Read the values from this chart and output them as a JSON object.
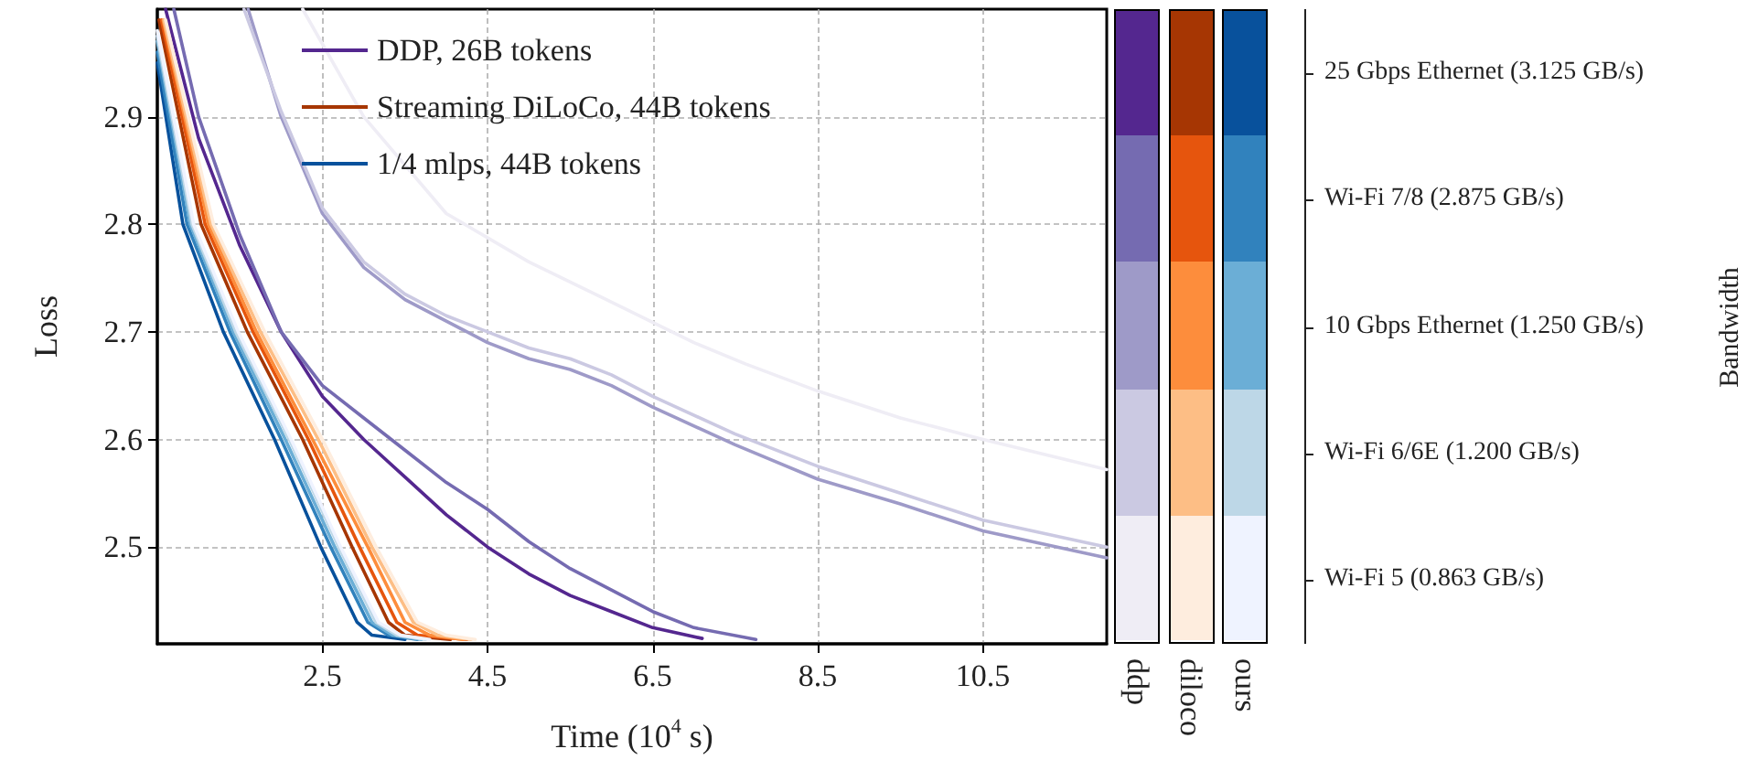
{
  "chart_data": [
    {
      "type": "line",
      "xlabel": "Time (10$^{4}$ s)",
      "ylabel": "Loss",
      "xlim": [
        0.5,
        12
      ],
      "ylim": [
        2.41,
        3.0
      ],
      "xticks": [
        2.5,
        4.5,
        6.5,
        8.5,
        10.5
      ],
      "yticks": [
        2.5,
        2.6,
        2.7,
        2.8,
        2.9
      ],
      "grid": true,
      "legend": "top left",
      "marker": "none",
      "series": [
        {
          "name": "DDP, 26B tokens",
          "color": "#54278f",
          "x": [
            0.6,
            1.0,
            1.5,
            2.0,
            2.5,
            3.0,
            3.5,
            4.0,
            4.5,
            5.0,
            5.5,
            6.0,
            6.5,
            7.1
          ],
          "values": [
            3.0,
            2.88,
            2.78,
            2.7,
            2.64,
            2.6,
            2.565,
            2.53,
            2.5,
            2.475,
            2.455,
            2.44,
            2.425,
            2.415
          ]
        },
        {
          "color": "#756bb1",
          "x": [
            0.7,
            1.0,
            1.5,
            2.0,
            2.5,
            3.0,
            3.5,
            4.0,
            4.5,
            5.0,
            5.5,
            6.0,
            6.5,
            7.0,
            7.75
          ],
          "values": [
            3.0,
            2.9,
            2.79,
            2.7,
            2.65,
            2.62,
            2.59,
            2.56,
            2.535,
            2.505,
            2.48,
            2.46,
            2.44,
            2.425,
            2.414
          ]
        },
        {
          "color": "#9e9ac8",
          "x": [
            1.6,
            2.0,
            2.5,
            3.0,
            3.5,
            4.0,
            4.5,
            5.0,
            5.5,
            6.0,
            6.5,
            7.5,
            8.5,
            9.5,
            10.5,
            12.0
          ],
          "values": [
            3.0,
            2.9,
            2.81,
            2.76,
            2.73,
            2.71,
            2.69,
            2.675,
            2.665,
            2.65,
            2.63,
            2.595,
            2.563,
            2.54,
            2.515,
            2.49
          ]
        },
        {
          "color": "#cbc9e2",
          "x": [
            1.55,
            2.0,
            2.5,
            3.0,
            3.5,
            4.0,
            4.5,
            5.0,
            5.5,
            6.0,
            6.5,
            7.5,
            8.5,
            9.5,
            10.5,
            12.0
          ],
          "values": [
            3.0,
            2.905,
            2.815,
            2.765,
            2.735,
            2.715,
            2.7,
            2.685,
            2.675,
            2.66,
            2.64,
            2.605,
            2.575,
            2.55,
            2.525,
            2.5
          ]
        },
        {
          "color": "#efedf5",
          "x": [
            2.26,
            3.0,
            4.0,
            5.0,
            5.94,
            7.0,
            7.63,
            8.5,
            9.5,
            10.5,
            12.0
          ],
          "values": [
            3.0,
            2.9,
            2.81,
            2.765,
            2.73,
            2.69,
            2.67,
            2.645,
            2.62,
            2.6,
            2.572
          ]
        },
        {
          "name": "Streaming DiLoCo, 44B tokens",
          "color": "#a63603",
          "x": [
            0.52,
            1.03,
            1.59,
            2.26,
            2.86,
            3.3,
            3.5,
            4.05
          ],
          "values": [
            2.99,
            2.8,
            2.7,
            2.6,
            2.5,
            2.43,
            2.418,
            2.414
          ]
        },
        {
          "color": "#e6550d",
          "x": [
            0.55,
            1.08,
            1.66,
            2.33,
            2.95,
            3.4,
            3.65,
            4.25
          ],
          "values": [
            2.99,
            2.8,
            2.7,
            2.6,
            2.5,
            2.43,
            2.418,
            2.414
          ]
        },
        {
          "color": "#fd8d3c",
          "x": [
            0.57,
            1.12,
            1.7,
            2.38,
            3.05,
            3.5,
            3.8,
            4.2
          ],
          "values": [
            2.99,
            2.8,
            2.7,
            2.6,
            2.5,
            2.43,
            2.418,
            2.414
          ]
        },
        {
          "color": "#fdbe85",
          "x": [
            0.58,
            1.15,
            1.75,
            2.45,
            3.1,
            3.6,
            3.9,
            4.3
          ],
          "values": [
            2.99,
            2.8,
            2.7,
            2.6,
            2.5,
            2.43,
            2.418,
            2.414
          ]
        },
        {
          "color": "#feedde",
          "x": [
            0.6,
            1.18,
            1.8,
            2.5,
            3.15,
            3.65,
            4.0,
            4.35
          ],
          "values": [
            2.99,
            2.8,
            2.7,
            2.6,
            2.5,
            2.43,
            2.418,
            2.414
          ]
        },
        {
          "name": "1/4 mlps, 44B tokens",
          "color": "#08519c",
          "x": [
            0.5,
            0.81,
            1.3,
            1.92,
            2.48,
            2.92,
            3.1,
            3.5
          ],
          "values": [
            2.95,
            2.8,
            2.7,
            2.6,
            2.5,
            2.43,
            2.418,
            2.414
          ]
        },
        {
          "color": "#3182bd",
          "x": [
            0.5,
            0.86,
            1.38,
            2.0,
            2.6,
            3.05,
            3.3,
            3.65
          ],
          "values": [
            2.96,
            2.8,
            2.7,
            2.6,
            2.5,
            2.43,
            2.418,
            2.414
          ]
        },
        {
          "color": "#6baed6",
          "x": [
            0.5,
            0.9,
            1.42,
            2.05,
            2.65,
            3.1,
            3.35,
            3.7
          ],
          "values": [
            2.97,
            2.8,
            2.7,
            2.6,
            2.5,
            2.43,
            2.418,
            2.414
          ]
        },
        {
          "color": "#bdd7e7",
          "x": [
            0.5,
            0.92,
            1.45,
            2.1,
            2.7,
            3.15,
            3.4,
            3.75
          ],
          "values": [
            2.975,
            2.8,
            2.7,
            2.6,
            2.5,
            2.43,
            2.418,
            2.414
          ]
        },
        {
          "color": "#eff3ff",
          "x": [
            0.5,
            0.94,
            1.48,
            2.12,
            2.72,
            3.18,
            3.45,
            3.8
          ],
          "values": [
            2.98,
            2.8,
            2.7,
            2.6,
            2.5,
            2.43,
            2.418,
            2.414
          ]
        }
      ]
    },
    {
      "type": "other",
      "ylabel": "Bandwidth",
      "categories": [
        "ddp",
        "diloco",
        "ours"
      ],
      "y_categories": [
        "25 Gbps Ethernet (3.125 GB/s)",
        "Wi-Fi 7/8 (2.875 GB/s)",
        "10 Gbps Ethernet (1.250 GB/s)",
        "Wi-Fi 6/6E (1.200 GB/s)",
        "Wi-Fi 5 (0.863 GB/s)"
      ]
    }
  ]
}
